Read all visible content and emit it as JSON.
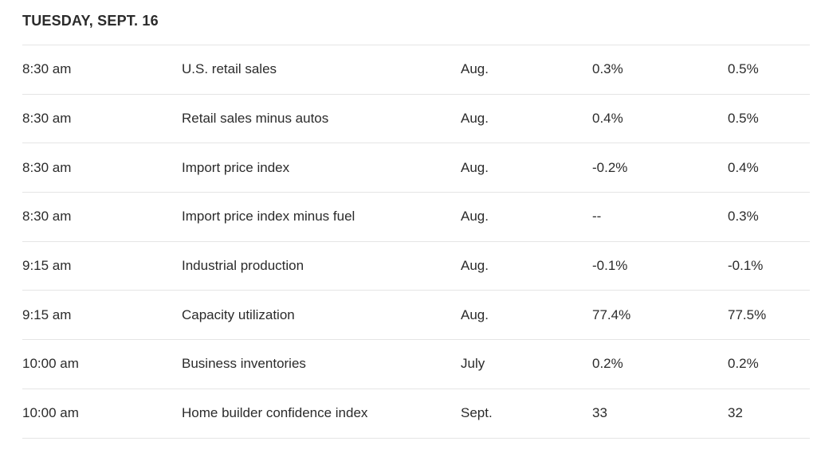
{
  "page": {
    "title": "TUESDAY, SEPT. 16"
  },
  "colors": {
    "text": "#2b2b2b",
    "divider": "#e5e5e5",
    "background": "#ffffff"
  },
  "table": {
    "rows": [
      [
        "8:30 am",
        "U.S. retail sales",
        "Aug.",
        "0.3%",
        "0.5%"
      ],
      [
        "8:30 am",
        "Retail sales minus autos",
        "Aug.",
        "0.4%",
        "0.5%"
      ],
      [
        "8:30 am",
        "Import price index",
        "Aug.",
        "-0.2%",
        "0.4%"
      ],
      [
        "8:30 am",
        "Import price index minus fuel",
        "Aug.",
        "--",
        "0.3%"
      ],
      [
        "9:15 am",
        "Industrial production",
        "Aug.",
        "-0.1%",
        "-0.1%"
      ],
      [
        "9:15 am",
        "Capacity utilization",
        "Aug.",
        "77.4%",
        "77.5%"
      ],
      [
        "10:00 am",
        "Business inventories",
        "July",
        "0.2%",
        "0.2%"
      ],
      [
        "10:00 am",
        "Home builder confidence index",
        "Sept.",
        "33",
        "32"
      ]
    ]
  }
}
